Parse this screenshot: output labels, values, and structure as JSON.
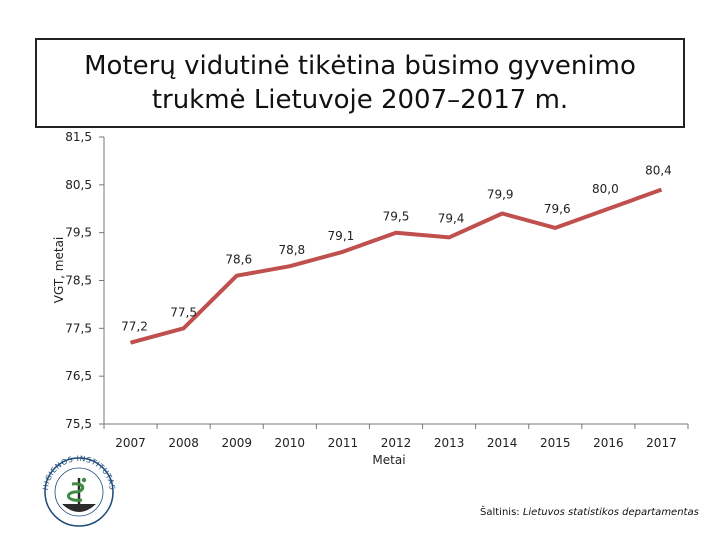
{
  "slide": {
    "title": "Moterų vidutinė tikėtina būsimo gyvenimo trukmė Lietuvoje 2007–2017 m.",
    "source_prefix": "Šaltinis: ",
    "source_name": "Lietuvos statistikos departamentas",
    "logo_icon": "hygiene-institute-logo-icon",
    "logo_text": "HIGIENOS INSTITUTAS"
  },
  "chart_data": {
    "type": "line",
    "title": "Moterų vidutinė tikėtina būsimo gyvenimo trukmė Lietuvoje 2007–2017 m.",
    "xlabel": "Metai",
    "ylabel": "VGT, metai",
    "categories": [
      "2007",
      "2008",
      "2009",
      "2010",
      "2011",
      "2012",
      "2013",
      "2014",
      "2015",
      "2016",
      "2017"
    ],
    "values": [
      77.2,
      77.5,
      78.6,
      78.8,
      79.1,
      79.5,
      79.4,
      79.9,
      79.6,
      80.0,
      80.4
    ],
    "data_labels": [
      "77,2",
      "77,5",
      "78,6",
      "78,8",
      "79,1",
      "79,5",
      "79,4",
      "79,9",
      "79,6",
      "80,0",
      "80,4"
    ],
    "y_ticks": [
      75.5,
      76.5,
      77.5,
      78.5,
      79.5,
      80.5,
      81.5
    ],
    "y_tick_labels": [
      "75,5",
      "76,5",
      "77,5",
      "78,5",
      "79,5",
      "80,5",
      "81,5"
    ],
    "ylim": [
      75.5,
      81.5
    ],
    "grid": false,
    "legend": "none",
    "line_color": "#c0504d"
  }
}
